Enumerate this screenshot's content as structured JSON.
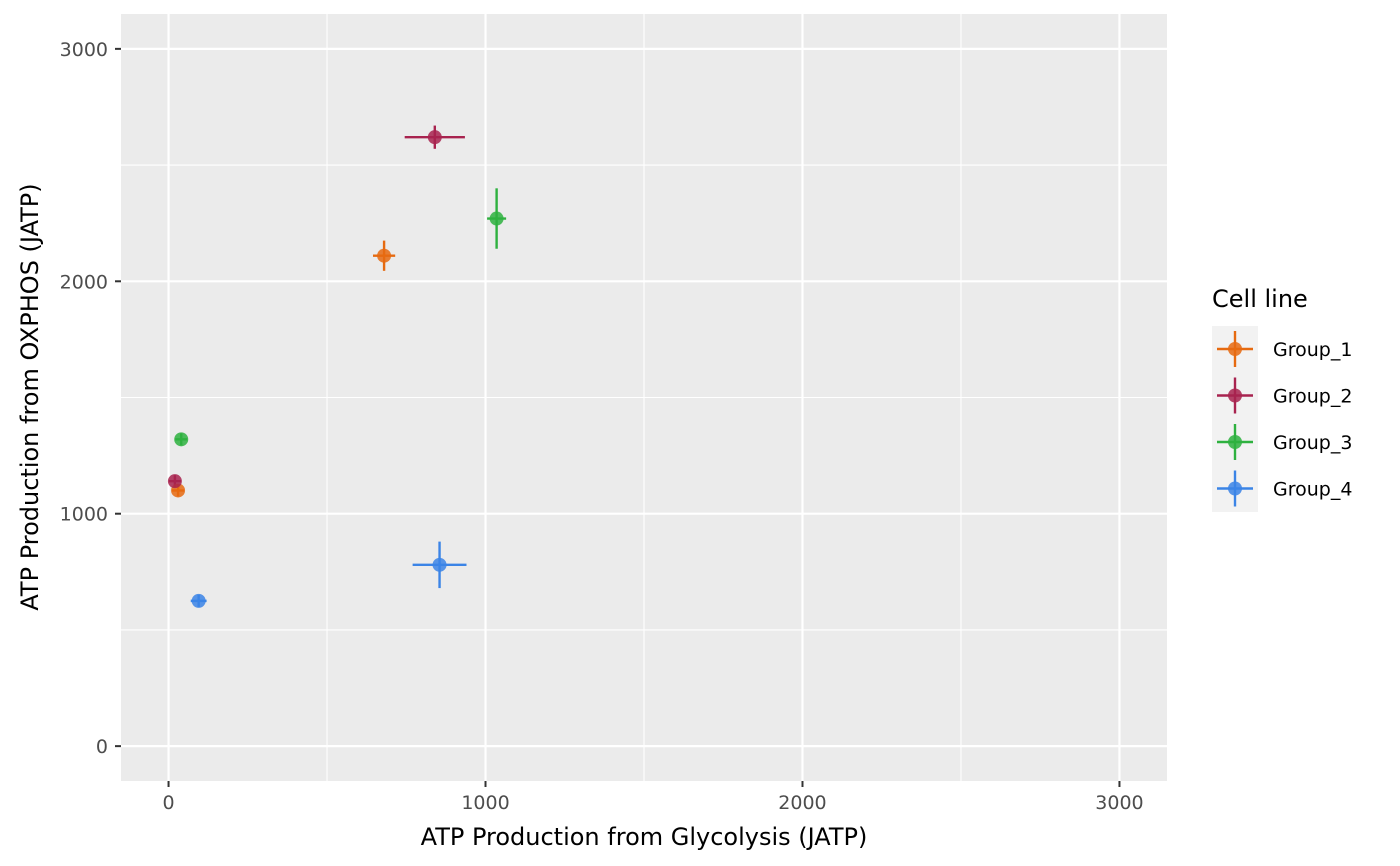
{
  "chart_data": {
    "type": "scatter",
    "title": "",
    "xlabel": "ATP Production from Glycolysis (JATP)",
    "ylabel": "ATP Production from OXPHOS (JATP)",
    "xlim": [
      -150,
      3150
    ],
    "ylim": [
      -150,
      3150
    ],
    "x_ticks": [
      0,
      1000,
      2000,
      3000
    ],
    "y_ticks": [
      0,
      1000,
      2000,
      3000
    ],
    "x_tick_labels": [
      "0",
      "1000",
      "2000",
      "3000"
    ],
    "y_tick_labels": [
      "0",
      "1000",
      "2000",
      "3000"
    ],
    "grid": true,
    "legend": {
      "title": "Cell line",
      "position": "right"
    },
    "series": [
      {
        "name": "Group_1",
        "color": "#E66A10",
        "points": [
          {
            "x": 680,
            "y": 2110,
            "xerr": 35,
            "yerr": 65
          },
          {
            "x": 30,
            "y": 1100,
            "xerr": 0,
            "yerr": 0
          }
        ]
      },
      {
        "name": "Group_2",
        "color": "#A8234F",
        "points": [
          {
            "x": 840,
            "y": 2620,
            "xerr": 95,
            "yerr": 50
          },
          {
            "x": 20,
            "y": 1140,
            "xerr": 15,
            "yerr": 15
          }
        ]
      },
      {
        "name": "Group_3",
        "color": "#2EB13F",
        "points": [
          {
            "x": 1035,
            "y": 2270,
            "xerr": 30,
            "yerr": 130
          },
          {
            "x": 40,
            "y": 1320,
            "xerr": 0,
            "yerr": 0
          }
        ]
      },
      {
        "name": "Group_4",
        "color": "#3B84E6",
        "points": [
          {
            "x": 855,
            "y": 780,
            "xerr": 85,
            "yerr": 100
          },
          {
            "x": 95,
            "y": 625,
            "xerr": 25,
            "yerr": 15
          }
        ]
      }
    ]
  }
}
